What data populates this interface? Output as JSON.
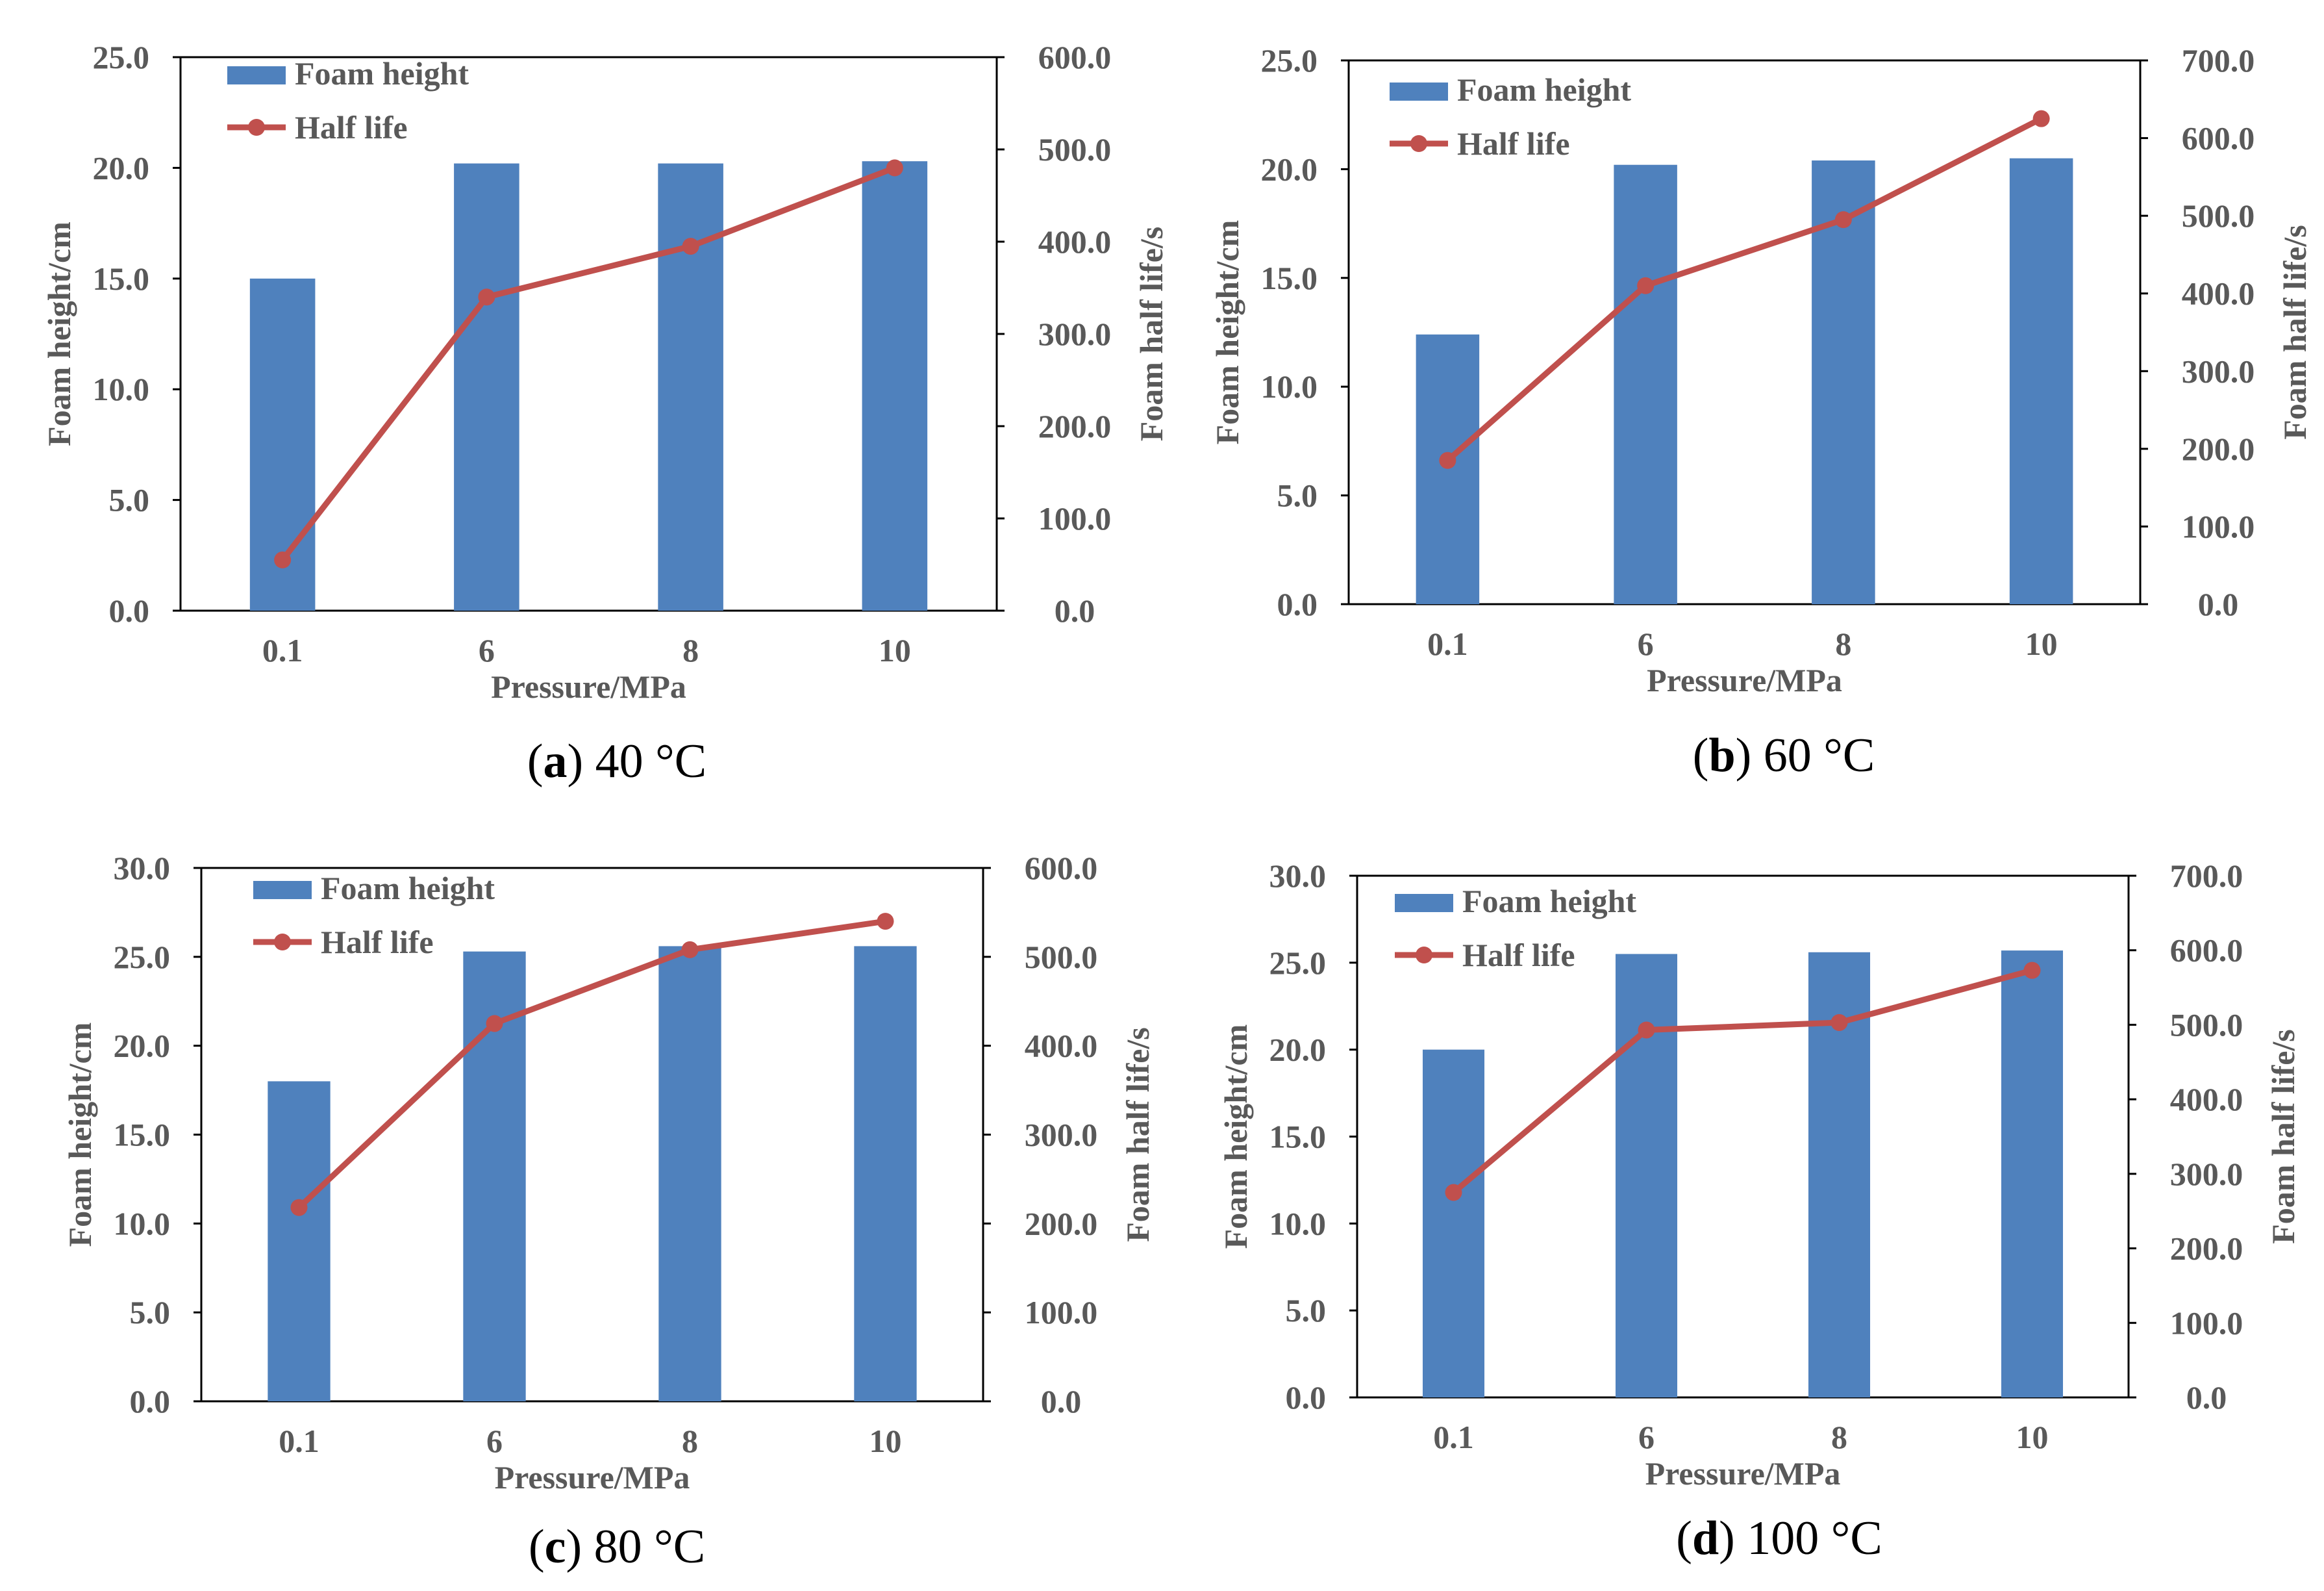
{
  "colors": {
    "bar": "#4F81BD",
    "line": "#C0504D",
    "axis": "#000000",
    "text": "#595959"
  },
  "chart_data": [
    {
      "type": "bar+line",
      "caption": {
        "open": "(",
        "letter": "a",
        "rest": ") 40 °C"
      },
      "categories": [
        "0.1",
        "6",
        "8",
        "10"
      ],
      "xlabel": "Pressure/MPa",
      "ylabel": "Foam height/cm",
      "y2label": "Foam half life/s",
      "ylim": [
        0,
        25
      ],
      "yticks": [
        "0.0",
        "5.0",
        "10.0",
        "15.0",
        "20.0",
        "25.0"
      ],
      "y2lim": [
        0,
        600
      ],
      "y2ticks": [
        "0.0",
        "100.0",
        "200.0",
        "300.0",
        "400.0",
        "500.0",
        "600.0"
      ],
      "series": [
        {
          "name": "Foam height",
          "kind": "bar",
          "axis": "left",
          "values": [
            15.0,
            20.2,
            20.2,
            20.3
          ]
        },
        {
          "name": "Half life",
          "kind": "line",
          "axis": "right",
          "values": [
            55,
            340,
            395,
            480
          ]
        }
      ],
      "legend": "top-left"
    },
    {
      "type": "bar+line",
      "caption": {
        "open": "(",
        "letter": "b",
        "rest": ") 60 °C"
      },
      "categories": [
        "0.1",
        "6",
        "8",
        "10"
      ],
      "xlabel": "Pressure/MPa",
      "ylabel": "Foam height/cm",
      "y2label": "Foam half life/s",
      "ylim": [
        0,
        25
      ],
      "yticks": [
        "0.0",
        "5.0",
        "10.0",
        "15.0",
        "20.0",
        "25.0"
      ],
      "y2lim": [
        0,
        700
      ],
      "y2ticks": [
        "0.0",
        "100.0",
        "200.0",
        "300.0",
        "400.0",
        "500.0",
        "600.0",
        "700.0"
      ],
      "series": [
        {
          "name": "Foam height",
          "kind": "bar",
          "axis": "left",
          "values": [
            12.4,
            20.2,
            20.4,
            20.5
          ]
        },
        {
          "name": "Half life",
          "kind": "line",
          "axis": "right",
          "values": [
            185,
            410,
            495,
            625
          ]
        }
      ],
      "legend": "top-left"
    },
    {
      "type": "bar+line",
      "caption": {
        "open": "(",
        "letter": "c",
        "rest": ") 80 °C"
      },
      "categories": [
        "0.1",
        "6",
        "8",
        "10"
      ],
      "xlabel": "Pressure/MPa",
      "ylabel": "Foam height/cm",
      "y2label": "Foam half life/s",
      "ylim": [
        0,
        30
      ],
      "yticks": [
        "0.0",
        "5.0",
        "10.0",
        "15.0",
        "20.0",
        "25.0",
        "30.0"
      ],
      "y2lim": [
        0,
        600
      ],
      "y2ticks": [
        "0.0",
        "100.0",
        "200.0",
        "300.0",
        "400.0",
        "500.0",
        "600.0"
      ],
      "series": [
        {
          "name": "Foam height",
          "kind": "bar",
          "axis": "left",
          "values": [
            18.0,
            25.3,
            25.6,
            25.6
          ]
        },
        {
          "name": "Half life",
          "kind": "line",
          "axis": "right",
          "values": [
            218,
            425,
            508,
            540
          ]
        }
      ],
      "legend": "top-left"
    },
    {
      "type": "bar+line",
      "caption": {
        "open": "(",
        "letter": "d",
        "rest": ") 100 °C"
      },
      "categories": [
        "0.1",
        "6",
        "8",
        "10"
      ],
      "xlabel": "Pressure/MPa",
      "ylabel": "Foam height/cm",
      "y2label": "Foam half life/s",
      "ylim": [
        0,
        30
      ],
      "yticks": [
        "0.0",
        "5.0",
        "10.0",
        "15.0",
        "20.0",
        "25.0",
        "30.0"
      ],
      "y2lim": [
        0,
        700
      ],
      "y2ticks": [
        "0.0",
        "100.0",
        "200.0",
        "300.0",
        "400.0",
        "500.0",
        "600.0",
        "700.0"
      ],
      "series": [
        {
          "name": "Foam height",
          "kind": "bar",
          "axis": "left",
          "values": [
            20.0,
            25.5,
            25.6,
            25.7
          ]
        },
        {
          "name": "Half life",
          "kind": "line",
          "axis": "right",
          "values": [
            275,
            493,
            503,
            573
          ]
        }
      ],
      "legend": "top-left"
    }
  ]
}
